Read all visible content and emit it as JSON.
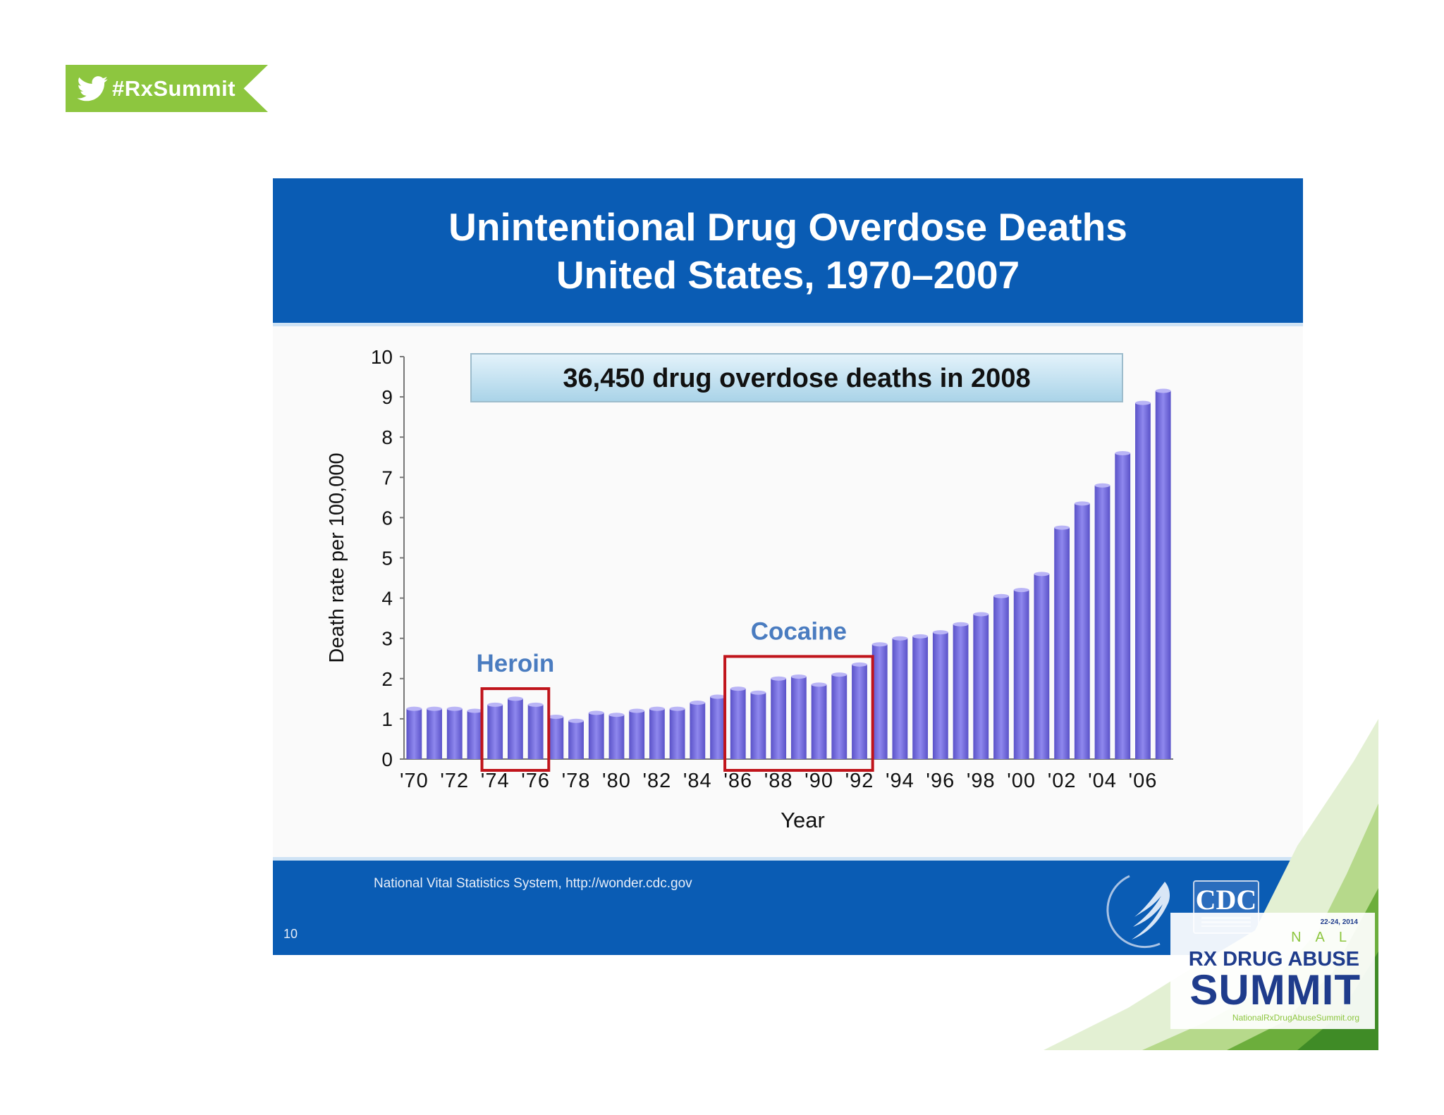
{
  "hashtag": "#RxSummit",
  "slide": {
    "title_line1": "Unintentional Drug Overdose Deaths",
    "title_line2": "United States, 1970–2007",
    "source": "National Vital Statistics System, http://wonder.cdc.gov",
    "page_number": "10",
    "cdc_logo_text": "CDC"
  },
  "summit": {
    "date": "22-24, 2014",
    "national": "NAL",
    "rx": "RX DRUG ABUSE",
    "title": "SUMMIT",
    "url": "NationalRxDrugAbuseSummit.org"
  },
  "colors": {
    "brand_blue": "#0a5cb4",
    "bar": "#7b73e0",
    "highlight_box": "#c0141b",
    "annotation_text": "#4a7cc0",
    "green": "#8dc63f"
  },
  "chart_data": {
    "type": "bar",
    "title": "Unintentional Drug Overdose Deaths United States, 1970–2007",
    "xlabel": "Year",
    "ylabel": "Death rate per 100,000",
    "ylim": [
      0,
      10
    ],
    "yticks": [
      "0",
      "1",
      "2",
      "3",
      "4",
      "5",
      "6",
      "7",
      "8",
      "9",
      "10"
    ],
    "categories": [
      "1970",
      "1971",
      "1972",
      "1973",
      "1974",
      "1975",
      "1976",
      "1977",
      "1978",
      "1979",
      "1980",
      "1981",
      "1982",
      "1983",
      "1984",
      "1985",
      "1986",
      "1987",
      "1988",
      "1989",
      "1990",
      "1991",
      "1992",
      "1993",
      "1994",
      "1995",
      "1996",
      "1997",
      "1998",
      "1999",
      "2000",
      "2001",
      "2002",
      "2003",
      "2004",
      "2005",
      "2006",
      "2007"
    ],
    "values": [
      1.25,
      1.25,
      1.25,
      1.2,
      1.35,
      1.5,
      1.35,
      1.05,
      0.95,
      1.15,
      1.1,
      1.2,
      1.25,
      1.25,
      1.4,
      1.55,
      1.75,
      1.65,
      2.0,
      2.05,
      1.85,
      2.1,
      2.35,
      2.85,
      3.0,
      3.05,
      3.15,
      3.35,
      3.6,
      4.05,
      4.2,
      4.6,
      5.75,
      6.35,
      6.8,
      7.6,
      8.85,
      9.15
    ],
    "tick_labels": [
      "'70",
      "'72",
      "'74",
      "'76",
      "'78",
      "'80",
      "'82",
      "'84",
      "'86",
      "'88",
      "'90",
      "'92",
      "'94",
      "'96",
      "'98",
      "'00",
      "'02",
      "'04",
      "'06"
    ],
    "callout": "36,450 drug overdose deaths in 2008",
    "annotations": [
      {
        "label": "Heroin",
        "from": "1974",
        "to": "1976"
      },
      {
        "label": "Cocaine",
        "from": "1986",
        "to": "1992"
      }
    ]
  }
}
